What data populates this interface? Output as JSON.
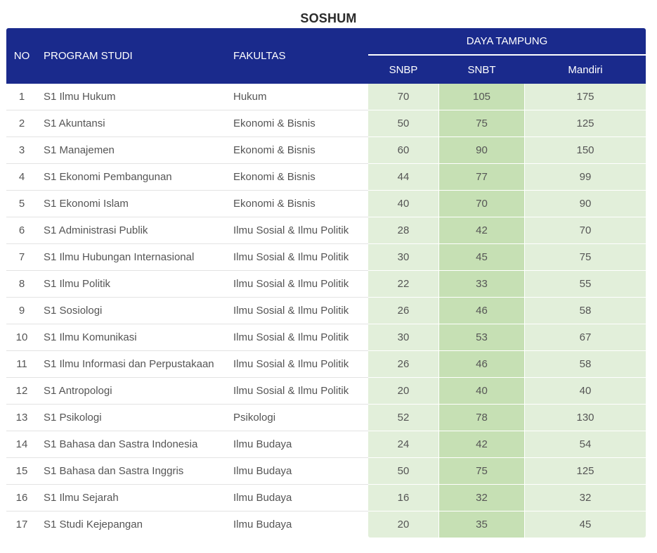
{
  "title": "SOSHUM",
  "headers": {
    "no": "NO",
    "program": "PROGRAM STUDI",
    "faculty": "FAKULTAS",
    "capacity": "DAYA TAMPUNG",
    "snbp": "SNBP",
    "snbt": "SNBT",
    "mandiri": "Mandiri"
  },
  "colors": {
    "header_bg": "#1a2a8c",
    "snbp_bg": "#e2efda",
    "snbt_bg": "#c6e0b4",
    "mandiri_bg": "#e2efda"
  },
  "rows": [
    {
      "no": "1",
      "program": "S1 Ilmu Hukum",
      "faculty": "Hukum",
      "snbp": "70",
      "snbt": "105",
      "mandiri": "175"
    },
    {
      "no": "2",
      "program": "S1 Akuntansi",
      "faculty": "Ekonomi & Bisnis",
      "snbp": "50",
      "snbt": "75",
      "mandiri": "125"
    },
    {
      "no": "3",
      "program": "S1 Manajemen",
      "faculty": "Ekonomi & Bisnis",
      "snbp": "60",
      "snbt": "90",
      "mandiri": "150"
    },
    {
      "no": "4",
      "program": "S1 Ekonomi Pembangunan",
      "faculty": "Ekonomi & Bisnis",
      "snbp": "44",
      "snbt": "77",
      "mandiri": "99"
    },
    {
      "no": "5",
      "program": "S1 Ekonomi Islam",
      "faculty": "Ekonomi & Bisnis",
      "snbp": "40",
      "snbt": "70",
      "mandiri": "90"
    },
    {
      "no": "6",
      "program": "S1 Administrasi Publik",
      "faculty": "Ilmu Sosial & Ilmu Politik",
      "snbp": "28",
      "snbt": "42",
      "mandiri": "70"
    },
    {
      "no": "7",
      "program": "S1 Ilmu Hubungan Internasional",
      "faculty": "Ilmu Sosial & Ilmu Politik",
      "snbp": "30",
      "snbt": "45",
      "mandiri": "75"
    },
    {
      "no": "8",
      "program": "S1 Ilmu Politik",
      "faculty": "Ilmu Sosial & Ilmu Politik",
      "snbp": "22",
      "snbt": "33",
      "mandiri": "55"
    },
    {
      "no": "9",
      "program": "S1 Sosiologi",
      "faculty": "Ilmu Sosial & Ilmu Politik",
      "snbp": "26",
      "snbt": "46",
      "mandiri": "58"
    },
    {
      "no": "10",
      "program": "S1 Ilmu Komunikasi",
      "faculty": "Ilmu Sosial & Ilmu Politik",
      "snbp": "30",
      "snbt": "53",
      "mandiri": "67"
    },
    {
      "no": "11",
      "program": "S1 Ilmu Informasi dan Perpustakaan",
      "faculty": "Ilmu Sosial & Ilmu Politik",
      "snbp": "26",
      "snbt": "46",
      "mandiri": "58"
    },
    {
      "no": "12",
      "program": "S1 Antropologi",
      "faculty": "Ilmu Sosial & Ilmu Politik",
      "snbp": "20",
      "snbt": "40",
      "mandiri": "40"
    },
    {
      "no": "13",
      "program": "S1 Psikologi",
      "faculty": "Psikologi",
      "snbp": "52",
      "snbt": "78",
      "mandiri": "130"
    },
    {
      "no": "14",
      "program": "S1 Bahasa dan Sastra Indonesia",
      "faculty": "Ilmu Budaya",
      "snbp": "24",
      "snbt": "42",
      "mandiri": "54"
    },
    {
      "no": "15",
      "program": "S1 Bahasa dan Sastra Inggris",
      "faculty": "Ilmu Budaya",
      "snbp": "50",
      "snbt": "75",
      "mandiri": "125"
    },
    {
      "no": "16",
      "program": "S1 Ilmu Sejarah",
      "faculty": "Ilmu Budaya",
      "snbp": "16",
      "snbt": "32",
      "mandiri": "32"
    },
    {
      "no": "17",
      "program": "S1 Studi Kejepangan",
      "faculty": "Ilmu Budaya",
      "snbp": "20",
      "snbt": "35",
      "mandiri": "45"
    }
  ]
}
